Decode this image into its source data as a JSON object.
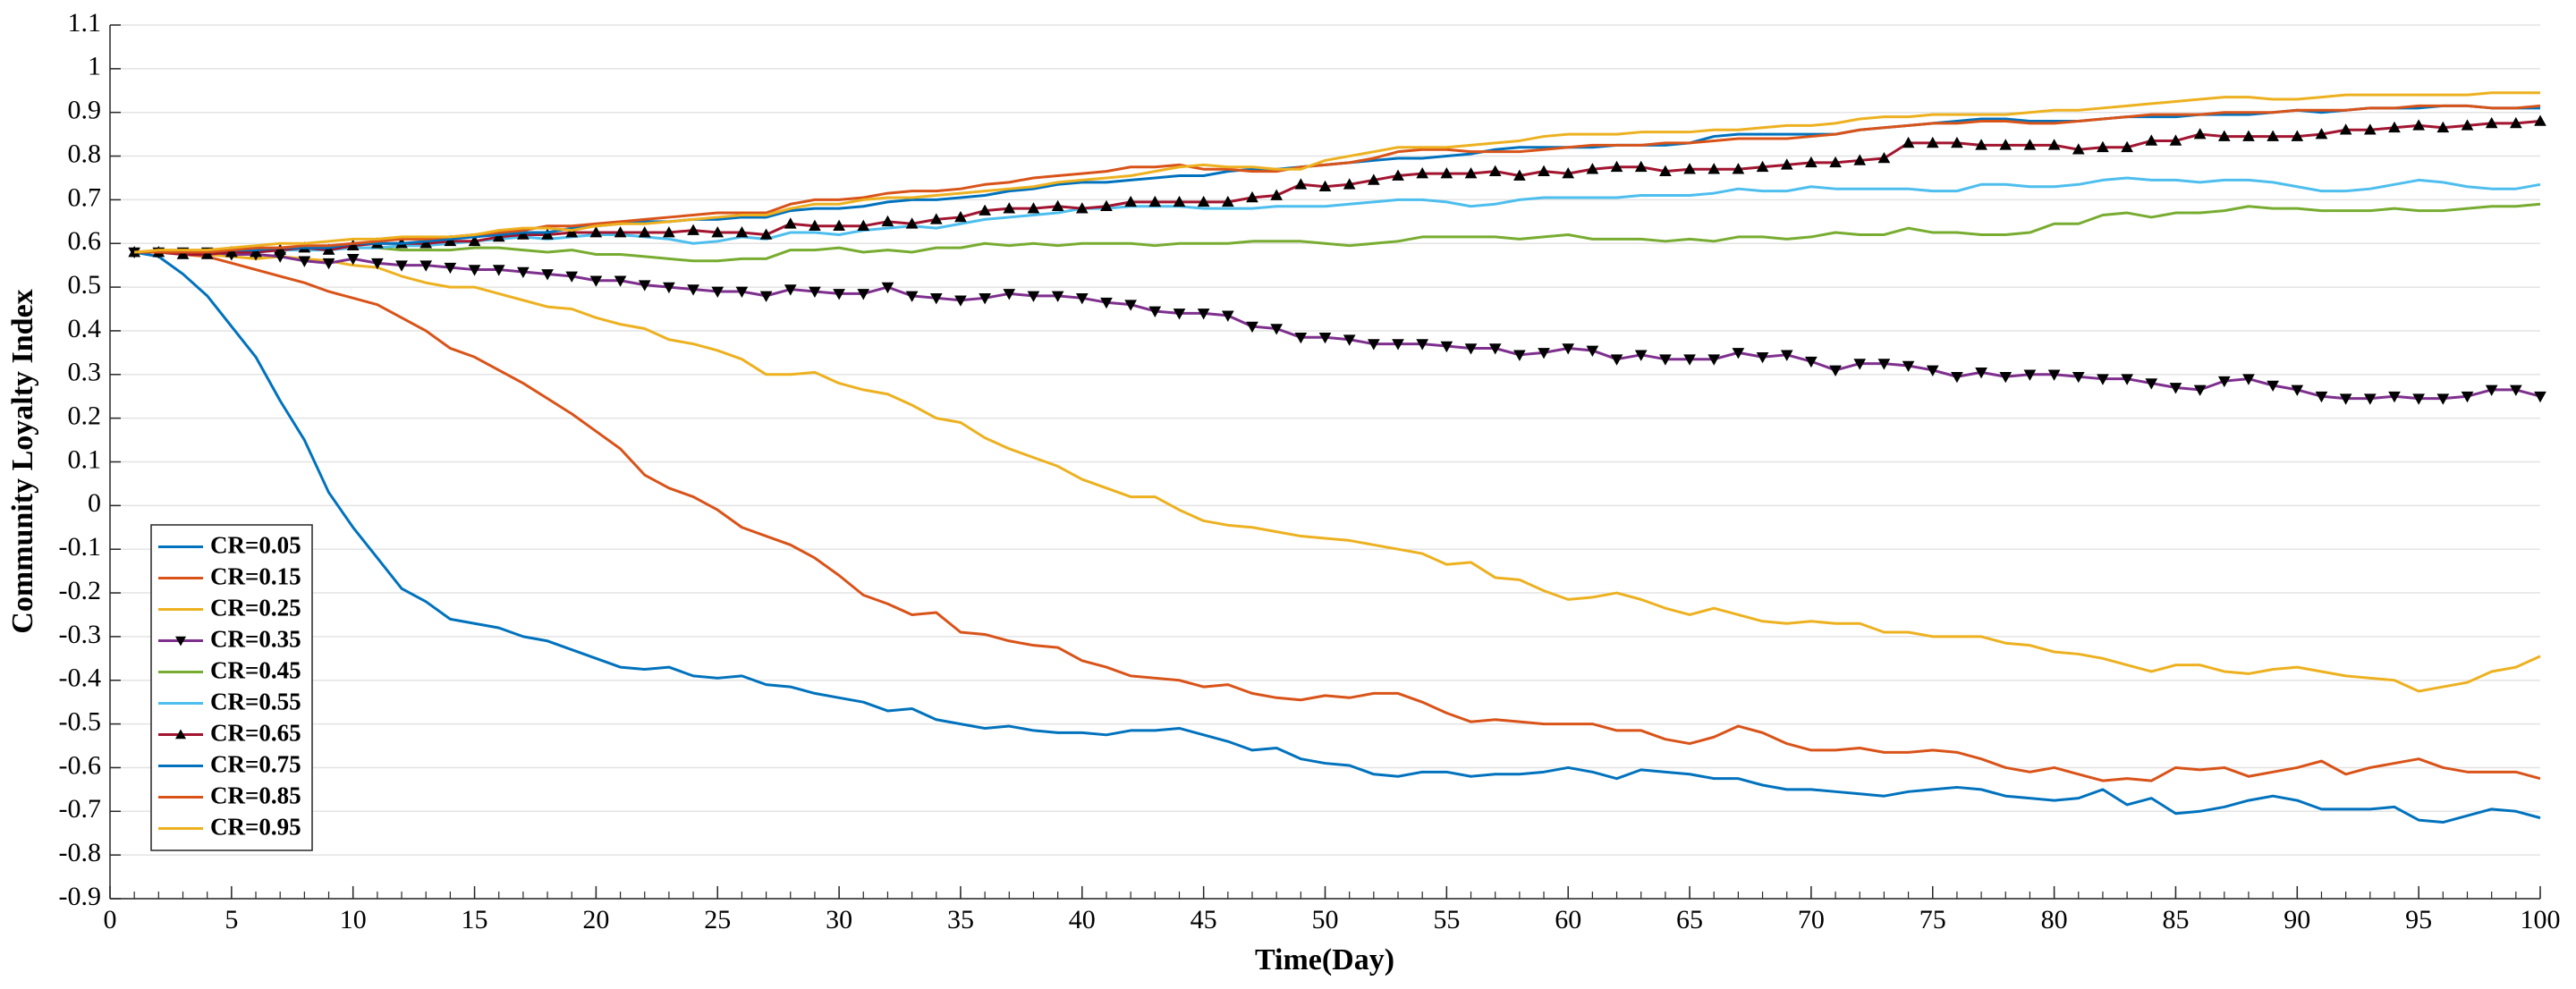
{
  "chart_data": {
    "type": "line",
    "xlabel": "Time(Day)",
    "ylabel": "Community Loyalty Index",
    "xlim": [
      0,
      100
    ],
    "ylim": [
      -0.9,
      1.1
    ],
    "xticks": [
      0,
      5,
      10,
      15,
      20,
      25,
      30,
      35,
      40,
      45,
      50,
      55,
      60,
      65,
      70,
      75,
      80,
      85,
      90,
      95,
      100
    ],
    "yticks": [
      -0.9,
      -0.8,
      -0.7,
      -0.6,
      -0.5,
      -0.4,
      -0.3,
      -0.2,
      -0.1,
      0,
      0.1,
      0.2,
      0.3,
      0.4,
      0.5,
      0.6,
      0.7,
      0.8,
      0.9,
      1,
      1.1
    ],
    "grid": "y",
    "legend": "lower left",
    "x": [
      1,
      2,
      3,
      4,
      5,
      6,
      7,
      8,
      9,
      10,
      11,
      12,
      13,
      14,
      15,
      16,
      17,
      18,
      19,
      20,
      21,
      22,
      23,
      24,
      25,
      26,
      27,
      28,
      29,
      30,
      31,
      32,
      33,
      34,
      35,
      36,
      37,
      38,
      39,
      40,
      41,
      42,
      43,
      44,
      45,
      46,
      47,
      48,
      49,
      50,
      51,
      52,
      53,
      54,
      55,
      56,
      57,
      58,
      59,
      60,
      61,
      62,
      63,
      64,
      65,
      66,
      67,
      68,
      69,
      70,
      71,
      72,
      73,
      74,
      75,
      76,
      77,
      78,
      79,
      80,
      81,
      82,
      83,
      84,
      85,
      86,
      87,
      88,
      89,
      90,
      91,
      92,
      93,
      94,
      95,
      96,
      97,
      98,
      99,
      100
    ],
    "series": [
      {
        "name": "CR=0.05",
        "color": "#0072BD",
        "values": [
          0.58,
          0.57,
          0.53,
          0.48,
          0.41,
          0.34,
          0.24,
          0.15,
          0.03,
          -0.05,
          -0.12,
          -0.19,
          -0.22,
          -0.26,
          -0.27,
          -0.28,
          -0.3,
          -0.31,
          -0.33,
          -0.35,
          -0.37,
          -0.375,
          -0.37,
          -0.39,
          -0.395,
          -0.39,
          -0.41,
          -0.415,
          -0.43,
          -0.44,
          -0.45,
          -0.47,
          -0.465,
          -0.49,
          -0.5,
          -0.51,
          -0.505,
          -0.515,
          -0.52,
          -0.52,
          -0.525,
          -0.515,
          -0.515,
          -0.51,
          -0.525,
          -0.54,
          -0.56,
          -0.555,
          -0.58,
          -0.59,
          -0.595,
          -0.615,
          -0.62,
          -0.61,
          -0.61,
          -0.62,
          -0.615,
          -0.615,
          -0.61,
          -0.6,
          -0.61,
          -0.625,
          -0.605,
          -0.61,
          -0.615,
          -0.625,
          -0.625,
          -0.64,
          -0.65,
          -0.65,
          -0.655,
          -0.66,
          -0.665,
          -0.655,
          -0.65,
          -0.645,
          -0.65,
          -0.665,
          -0.67,
          -0.675,
          -0.67,
          -0.65,
          -0.685,
          -0.67,
          -0.705,
          -0.7,
          -0.69,
          -0.675,
          -0.665,
          -0.675,
          -0.695,
          -0.695,
          -0.695,
          -0.69,
          -0.72,
          -0.725,
          -0.71,
          -0.695,
          -0.7,
          -0.715
        ]
      },
      {
        "name": "CR=0.15",
        "color": "#D95319",
        "values": [
          0.58,
          0.58,
          0.575,
          0.57,
          0.555,
          0.54,
          0.525,
          0.51,
          0.49,
          0.475,
          0.46,
          0.43,
          0.4,
          0.36,
          0.34,
          0.31,
          0.28,
          0.245,
          0.21,
          0.17,
          0.13,
          0.07,
          0.04,
          0.02,
          -0.01,
          -0.05,
          -0.07,
          -0.09,
          -0.12,
          -0.16,
          -0.205,
          -0.225,
          -0.25,
          -0.245,
          -0.29,
          -0.295,
          -0.31,
          -0.32,
          -0.325,
          -0.355,
          -0.37,
          -0.39,
          -0.395,
          -0.4,
          -0.415,
          -0.41,
          -0.43,
          -0.44,
          -0.445,
          -0.435,
          -0.44,
          -0.43,
          -0.43,
          -0.45,
          -0.475,
          -0.495,
          -0.49,
          -0.495,
          -0.5,
          -0.5,
          -0.5,
          -0.515,
          -0.515,
          -0.535,
          -0.545,
          -0.53,
          -0.505,
          -0.52,
          -0.545,
          -0.56,
          -0.56,
          -0.555,
          -0.565,
          -0.565,
          -0.56,
          -0.565,
          -0.58,
          -0.6,
          -0.61,
          -0.6,
          -0.615,
          -0.63,
          -0.625,
          -0.63,
          -0.6,
          -0.605,
          -0.6,
          -0.62,
          -0.61,
          -0.6,
          -0.585,
          -0.615,
          -0.6,
          -0.59,
          -0.58,
          -0.6,
          -0.61,
          -0.61,
          -0.61,
          -0.625
        ]
      },
      {
        "name": "CR=0.25",
        "color": "#EDB120",
        "values": [
          0.58,
          0.58,
          0.575,
          0.575,
          0.57,
          0.565,
          0.57,
          0.565,
          0.56,
          0.55,
          0.545,
          0.525,
          0.51,
          0.5,
          0.5,
          0.485,
          0.47,
          0.455,
          0.45,
          0.43,
          0.415,
          0.405,
          0.38,
          0.37,
          0.355,
          0.335,
          0.3,
          0.3,
          0.305,
          0.28,
          0.265,
          0.255,
          0.23,
          0.2,
          0.19,
          0.155,
          0.13,
          0.11,
          0.09,
          0.06,
          0.04,
          0.02,
          0.02,
          -0.01,
          -0.035,
          -0.045,
          -0.05,
          -0.06,
          -0.07,
          -0.075,
          -0.08,
          -0.09,
          -0.1,
          -0.11,
          -0.135,
          -0.13,
          -0.165,
          -0.17,
          -0.195,
          -0.215,
          -0.21,
          -0.2,
          -0.215,
          -0.235,
          -0.25,
          -0.235,
          -0.25,
          -0.265,
          -0.27,
          -0.265,
          -0.27,
          -0.27,
          -0.29,
          -0.29,
          -0.3,
          -0.3,
          -0.3,
          -0.315,
          -0.32,
          -0.335,
          -0.34,
          -0.35,
          -0.365,
          -0.38,
          -0.365,
          -0.365,
          -0.38,
          -0.385,
          -0.375,
          -0.37,
          -0.38,
          -0.39,
          -0.395,
          -0.4,
          -0.425,
          -0.415,
          -0.405,
          -0.38,
          -0.37,
          -0.345
        ]
      },
      {
        "name": "CR=0.35",
        "color": "#7E2F8E",
        "marker": "v",
        "marker_color": "#000000",
        "values": [
          0.58,
          0.58,
          0.58,
          0.58,
          0.575,
          0.575,
          0.57,
          0.56,
          0.555,
          0.565,
          0.555,
          0.55,
          0.55,
          0.545,
          0.54,
          0.54,
          0.535,
          0.53,
          0.525,
          0.515,
          0.515,
          0.505,
          0.5,
          0.495,
          0.49,
          0.49,
          0.48,
          0.495,
          0.49,
          0.485,
          0.485,
          0.5,
          0.48,
          0.475,
          0.47,
          0.475,
          0.485,
          0.48,
          0.48,
          0.475,
          0.465,
          0.46,
          0.445,
          0.44,
          0.44,
          0.435,
          0.41,
          0.405,
          0.385,
          0.385,
          0.38,
          0.37,
          0.37,
          0.37,
          0.365,
          0.36,
          0.36,
          0.345,
          0.35,
          0.36,
          0.355,
          0.335,
          0.345,
          0.335,
          0.335,
          0.335,
          0.35,
          0.34,
          0.345,
          0.33,
          0.31,
          0.325,
          0.325,
          0.32,
          0.31,
          0.295,
          0.305,
          0.295,
          0.3,
          0.3,
          0.295,
          0.29,
          0.29,
          0.28,
          0.27,
          0.265,
          0.285,
          0.29,
          0.275,
          0.265,
          0.25,
          0.245,
          0.245,
          0.25,
          0.245,
          0.245,
          0.25,
          0.265,
          0.265,
          0.25
        ]
      },
      {
        "name": "CR=0.45",
        "color": "#77AC30",
        "values": [
          0.58,
          0.58,
          0.58,
          0.58,
          0.58,
          0.585,
          0.59,
          0.585,
          0.59,
          0.59,
          0.59,
          0.585,
          0.585,
          0.585,
          0.59,
          0.59,
          0.585,
          0.58,
          0.585,
          0.575,
          0.575,
          0.57,
          0.565,
          0.56,
          0.56,
          0.565,
          0.565,
          0.585,
          0.585,
          0.59,
          0.58,
          0.585,
          0.58,
          0.59,
          0.59,
          0.6,
          0.595,
          0.6,
          0.595,
          0.6,
          0.6,
          0.6,
          0.595,
          0.6,
          0.6,
          0.6,
          0.605,
          0.605,
          0.605,
          0.6,
          0.595,
          0.6,
          0.605,
          0.615,
          0.615,
          0.615,
          0.615,
          0.61,
          0.615,
          0.62,
          0.61,
          0.61,
          0.61,
          0.605,
          0.61,
          0.605,
          0.615,
          0.615,
          0.61,
          0.615,
          0.625,
          0.62,
          0.62,
          0.635,
          0.625,
          0.625,
          0.62,
          0.62,
          0.625,
          0.645,
          0.645,
          0.665,
          0.67,
          0.66,
          0.67,
          0.67,
          0.675,
          0.685,
          0.68,
          0.68,
          0.675,
          0.675,
          0.675,
          0.68,
          0.675,
          0.675,
          0.68,
          0.685,
          0.685,
          0.69
        ]
      },
      {
        "name": "CR=0.55",
        "color": "#4DBEEE",
        "values": [
          0.58,
          0.58,
          0.58,
          0.58,
          0.58,
          0.58,
          0.585,
          0.585,
          0.585,
          0.59,
          0.59,
          0.595,
          0.595,
          0.6,
          0.605,
          0.61,
          0.615,
          0.61,
          0.615,
          0.62,
          0.62,
          0.615,
          0.61,
          0.6,
          0.605,
          0.615,
          0.61,
          0.625,
          0.625,
          0.62,
          0.63,
          0.635,
          0.64,
          0.635,
          0.645,
          0.655,
          0.66,
          0.665,
          0.67,
          0.68,
          0.68,
          0.685,
          0.685,
          0.685,
          0.68,
          0.68,
          0.68,
          0.685,
          0.685,
          0.685,
          0.69,
          0.695,
          0.7,
          0.7,
          0.695,
          0.685,
          0.69,
          0.7,
          0.705,
          0.705,
          0.705,
          0.705,
          0.71,
          0.71,
          0.71,
          0.715,
          0.725,
          0.72,
          0.72,
          0.73,
          0.725,
          0.725,
          0.725,
          0.725,
          0.72,
          0.72,
          0.735,
          0.735,
          0.73,
          0.73,
          0.735,
          0.745,
          0.75,
          0.745,
          0.745,
          0.74,
          0.745,
          0.745,
          0.74,
          0.73,
          0.72,
          0.72,
          0.725,
          0.735,
          0.745,
          0.74,
          0.73,
          0.725,
          0.725,
          0.735
        ]
      },
      {
        "name": "CR=0.65",
        "color": "#A2142F",
        "marker": "^",
        "marker_color": "#000000",
        "values": [
          0.58,
          0.58,
          0.575,
          0.575,
          0.58,
          0.58,
          0.585,
          0.59,
          0.585,
          0.595,
          0.6,
          0.6,
          0.6,
          0.605,
          0.605,
          0.615,
          0.62,
          0.62,
          0.625,
          0.625,
          0.625,
          0.625,
          0.625,
          0.63,
          0.625,
          0.625,
          0.62,
          0.645,
          0.64,
          0.64,
          0.64,
          0.65,
          0.645,
          0.655,
          0.66,
          0.675,
          0.68,
          0.68,
          0.685,
          0.68,
          0.685,
          0.695,
          0.695,
          0.695,
          0.695,
          0.695,
          0.705,
          0.71,
          0.735,
          0.73,
          0.735,
          0.745,
          0.755,
          0.76,
          0.76,
          0.76,
          0.765,
          0.755,
          0.765,
          0.76,
          0.77,
          0.775,
          0.775,
          0.765,
          0.77,
          0.77,
          0.77,
          0.775,
          0.78,
          0.785,
          0.785,
          0.79,
          0.795,
          0.83,
          0.83,
          0.83,
          0.825,
          0.825,
          0.825,
          0.825,
          0.815,
          0.82,
          0.82,
          0.835,
          0.835,
          0.85,
          0.845,
          0.845,
          0.845,
          0.845,
          0.85,
          0.86,
          0.86,
          0.865,
          0.87,
          0.865,
          0.87,
          0.875,
          0.875,
          0.88
        ]
      },
      {
        "name": "CR=0.75",
        "color": "#0072BD",
        "values": [
          0.58,
          0.58,
          0.58,
          0.58,
          0.585,
          0.585,
          0.59,
          0.59,
          0.59,
          0.6,
          0.6,
          0.6,
          0.605,
          0.61,
          0.615,
          0.62,
          0.625,
          0.625,
          0.635,
          0.64,
          0.645,
          0.65,
          0.65,
          0.655,
          0.655,
          0.66,
          0.66,
          0.675,
          0.68,
          0.68,
          0.685,
          0.695,
          0.7,
          0.7,
          0.705,
          0.71,
          0.72,
          0.725,
          0.735,
          0.74,
          0.74,
          0.745,
          0.75,
          0.755,
          0.755,
          0.765,
          0.77,
          0.77,
          0.775,
          0.78,
          0.785,
          0.79,
          0.795,
          0.795,
          0.8,
          0.805,
          0.815,
          0.82,
          0.82,
          0.82,
          0.82,
          0.825,
          0.825,
          0.825,
          0.83,
          0.845,
          0.85,
          0.85,
          0.85,
          0.85,
          0.85,
          0.86,
          0.865,
          0.87,
          0.875,
          0.88,
          0.885,
          0.885,
          0.88,
          0.88,
          0.88,
          0.885,
          0.89,
          0.89,
          0.89,
          0.895,
          0.895,
          0.895,
          0.9,
          0.905,
          0.9,
          0.905,
          0.91,
          0.91,
          0.91,
          0.915,
          0.915,
          0.91,
          0.91,
          0.91
        ]
      },
      {
        "name": "CR=0.85",
        "color": "#D95319",
        "values": [
          0.58,
          0.58,
          0.58,
          0.58,
          0.585,
          0.59,
          0.59,
          0.595,
          0.595,
          0.6,
          0.605,
          0.61,
          0.61,
          0.615,
          0.62,
          0.625,
          0.63,
          0.64,
          0.64,
          0.645,
          0.65,
          0.655,
          0.66,
          0.665,
          0.67,
          0.67,
          0.67,
          0.69,
          0.7,
          0.7,
          0.705,
          0.715,
          0.72,
          0.72,
          0.725,
          0.735,
          0.74,
          0.75,
          0.755,
          0.76,
          0.765,
          0.775,
          0.775,
          0.78,
          0.77,
          0.77,
          0.765,
          0.765,
          0.775,
          0.78,
          0.785,
          0.795,
          0.81,
          0.815,
          0.815,
          0.81,
          0.81,
          0.81,
          0.815,
          0.82,
          0.825,
          0.825,
          0.825,
          0.83,
          0.83,
          0.835,
          0.84,
          0.84,
          0.84,
          0.845,
          0.85,
          0.86,
          0.865,
          0.87,
          0.875,
          0.875,
          0.88,
          0.88,
          0.875,
          0.875,
          0.88,
          0.885,
          0.89,
          0.895,
          0.895,
          0.895,
          0.9,
          0.9,
          0.9,
          0.905,
          0.905,
          0.905,
          0.91,
          0.91,
          0.915,
          0.915,
          0.915,
          0.91,
          0.91,
          0.915
        ]
      },
      {
        "name": "CR=0.95",
        "color": "#EDB120",
        "values": [
          0.58,
          0.585,
          0.585,
          0.585,
          0.59,
          0.595,
          0.6,
          0.6,
          0.605,
          0.61,
          0.61,
          0.615,
          0.615,
          0.615,
          0.62,
          0.63,
          0.635,
          0.635,
          0.63,
          0.64,
          0.645,
          0.645,
          0.65,
          0.655,
          0.66,
          0.665,
          0.665,
          0.68,
          0.69,
          0.69,
          0.7,
          0.705,
          0.705,
          0.71,
          0.715,
          0.72,
          0.725,
          0.73,
          0.74,
          0.745,
          0.75,
          0.755,
          0.765,
          0.775,
          0.78,
          0.775,
          0.775,
          0.77,
          0.77,
          0.79,
          0.8,
          0.81,
          0.82,
          0.82,
          0.82,
          0.825,
          0.83,
          0.835,
          0.845,
          0.85,
          0.85,
          0.85,
          0.855,
          0.855,
          0.855,
          0.86,
          0.86,
          0.865,
          0.87,
          0.87,
          0.875,
          0.885,
          0.89,
          0.89,
          0.895,
          0.895,
          0.895,
          0.895,
          0.9,
          0.905,
          0.905,
          0.91,
          0.915,
          0.92,
          0.925,
          0.93,
          0.935,
          0.935,
          0.93,
          0.93,
          0.935,
          0.94,
          0.94,
          0.94,
          0.94,
          0.94,
          0.94,
          0.945,
          0.945,
          0.945
        ]
      }
    ]
  }
}
